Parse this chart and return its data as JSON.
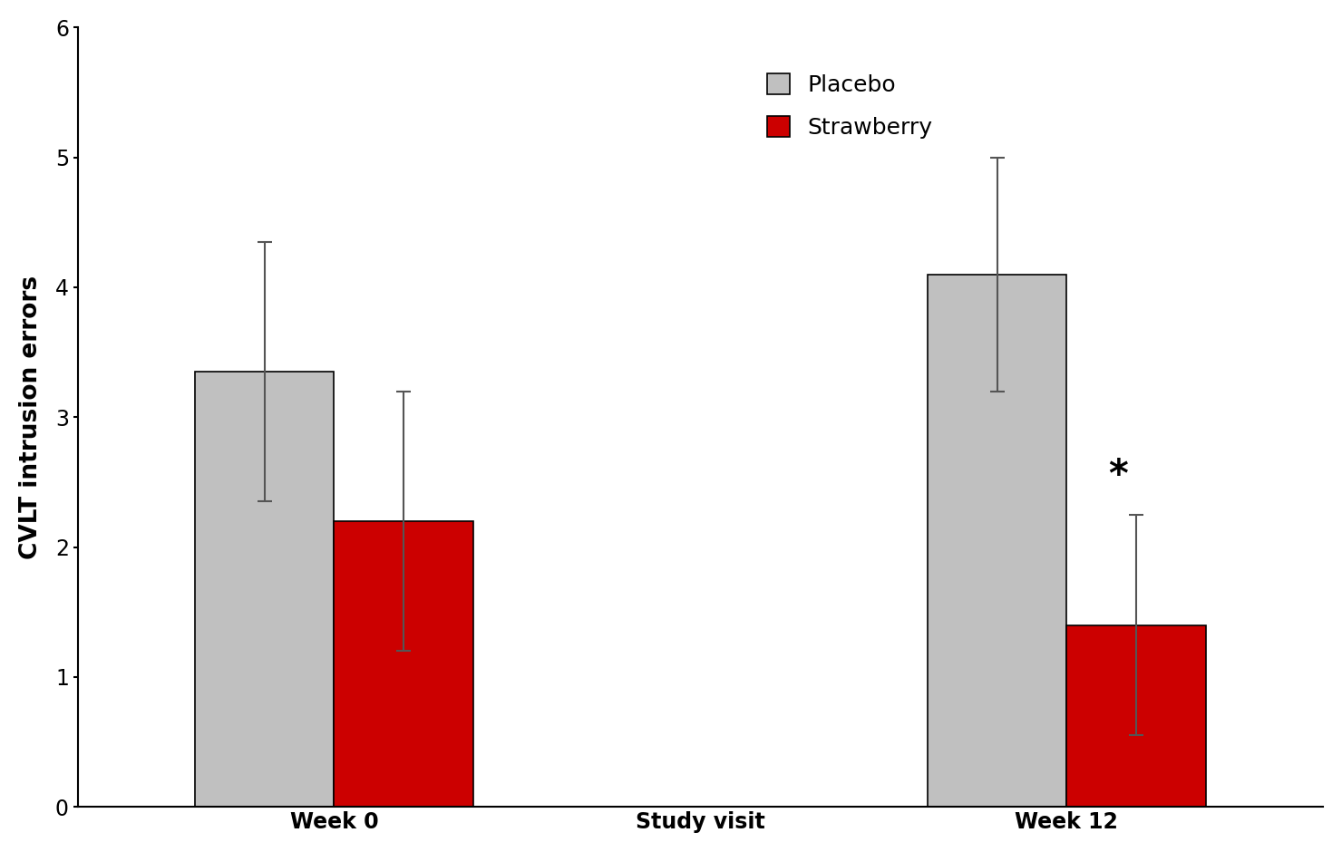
{
  "placebo_values": [
    3.35,
    4.1
  ],
  "strawberry_values": [
    2.2,
    1.4
  ],
  "placebo_errors": [
    1.0,
    0.9
  ],
  "strawberry_errors": [
    1.0,
    0.85
  ],
  "placebo_color": "#C0C0C0",
  "strawberry_color": "#CC0000",
  "bar_width": 0.38,
  "group_positions": [
    1.0,
    3.0
  ],
  "xtick_labels": [
    "Week 0",
    "Study visit",
    "Week 12"
  ],
  "xtick_positions": [
    1.0,
    2.0,
    3.0
  ],
  "ylabel": "CVLT intrusion errors",
  "ylim": [
    0,
    6
  ],
  "yticks": [
    0,
    1,
    2,
    3,
    4,
    5,
    6
  ],
  "legend_labels": [
    "Placebo",
    "Strawberry"
  ],
  "asterisk_text": "*",
  "background_color": "#ffffff",
  "label_fontsize": 19,
  "tick_fontsize": 17,
  "legend_fontsize": 18,
  "asterisk_fontsize": 30,
  "error_capsize": 6,
  "error_linewidth": 1.5,
  "error_color": "#555555"
}
